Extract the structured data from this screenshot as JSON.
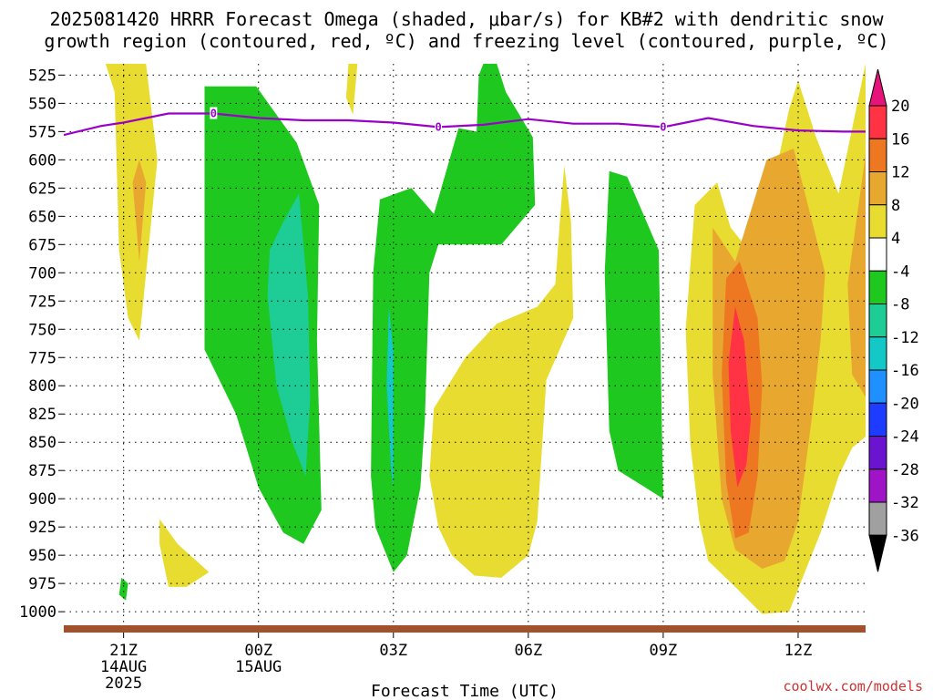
{
  "title_line1": "2025081420 HRRR Forecast Omega (shaded, μbar/s) for KB#2 with dendritic snow",
  "title_line2": "growth region (contoured, red, ºC) and freezing level (contoured, purple, ºC)",
  "credit": "coolwx.com/models",
  "credit_color": "#cc3333",
  "chart_data": {
    "type": "area",
    "xlabel": "Forecast Time (UTC)",
    "y_ticks": [
      525,
      550,
      575,
      600,
      625,
      650,
      675,
      700,
      725,
      750,
      775,
      800,
      825,
      850,
      875,
      900,
      925,
      950,
      975,
      1000
    ],
    "ylim": [
      1012,
      515
    ],
    "xlim": [
      -0.33,
      17.5
    ],
    "x_ticks": [
      {
        "x": 1,
        "label": "21Z",
        "sub1": "14AUG",
        "sub2": "2025"
      },
      {
        "x": 4,
        "label": "00Z",
        "sub1": "15AUG",
        "sub2": ""
      },
      {
        "x": 7,
        "label": "03Z",
        "sub1": "",
        "sub2": ""
      },
      {
        "x": 10,
        "label": "06Z",
        "sub1": "",
        "sub2": ""
      },
      {
        "x": 13,
        "label": "09Z",
        "sub1": "",
        "sub2": ""
      },
      {
        "x": 16,
        "label": "12Z",
        "sub1": "",
        "sub2": ""
      }
    ],
    "grid": true,
    "colorbar": {
      "labels": [
        "20",
        "16",
        "12",
        "8",
        "4",
        "-4",
        "-8",
        "-12",
        "-16",
        "-20",
        "-24",
        "-28",
        "-32",
        "-36"
      ],
      "colors": [
        "#ff3344",
        "#ee7722",
        "#e8a830",
        "#e8dc30",
        "#ffffff",
        "#1ec81e",
        "#1ecc96",
        "#14c8c8",
        "#1e90ff",
        "#1e3cff",
        "#6a14d2",
        "#a014c8",
        "#a0a0a0"
      ],
      "top_arrow_color": "#e6147a",
      "bottom_arrow_color": "#000000"
    },
    "freezing_level": {
      "color": "#9a00c8",
      "points": [
        [
          -0.33,
          578
        ],
        [
          0.5,
          570
        ],
        [
          1,
          567
        ],
        [
          1.5,
          563
        ],
        [
          2,
          559
        ],
        [
          3,
          559
        ],
        [
          4,
          563
        ],
        [
          5,
          565
        ],
        [
          6,
          565
        ],
        [
          7,
          567
        ],
        [
          8,
          571
        ],
        [
          9,
          569
        ],
        [
          10,
          564
        ],
        [
          11,
          568
        ],
        [
          12,
          568
        ],
        [
          13,
          571
        ],
        [
          13.5,
          567
        ],
        [
          14,
          563
        ],
        [
          15,
          570
        ],
        [
          16,
          574
        ],
        [
          17,
          575
        ],
        [
          17.5,
          575
        ]
      ],
      "labels": [
        [
          3.0,
          559,
          "0"
        ],
        [
          8.0,
          571,
          "0"
        ],
        [
          13.0,
          571,
          "0"
        ]
      ]
    },
    "ground_color": "#a0522d",
    "omega_regions": [
      {
        "value": 4,
        "color": "#e8dc30",
        "points": [
          [
            0.6,
            515
          ],
          [
            1.5,
            515
          ],
          [
            1.75,
            600
          ],
          [
            1.35,
            760
          ],
          [
            1.1,
            740
          ],
          [
            0.9,
            680
          ],
          [
            0.8,
            540
          ]
        ]
      },
      {
        "value": 4,
        "color": "#e8dc30",
        "points": [
          [
            6.0,
            515
          ],
          [
            6.2,
            515
          ],
          [
            6.1,
            560
          ],
          [
            5.95,
            545
          ]
        ]
      },
      {
        "value": 4,
        "color": "#e8dc30",
        "points": [
          [
            1.8,
            918
          ],
          [
            2.2,
            940
          ],
          [
            2.9,
            965
          ],
          [
            2.4,
            978
          ],
          [
            2.0,
            978
          ],
          [
            1.8,
            940
          ]
        ]
      },
      {
        "value": 4,
        "color": "#e8dc30",
        "points": [
          [
            7.9,
            820
          ],
          [
            8.6,
            775
          ],
          [
            9.3,
            745
          ],
          [
            10.2,
            730
          ],
          [
            10.6,
            710
          ],
          [
            10.7,
            655
          ],
          [
            10.8,
            605
          ],
          [
            10.95,
            655
          ],
          [
            11.0,
            740
          ],
          [
            10.4,
            795
          ],
          [
            10.2,
            920
          ],
          [
            10.0,
            950
          ],
          [
            9.4,
            970
          ],
          [
            8.8,
            968
          ],
          [
            8.3,
            950
          ],
          [
            8.0,
            925
          ],
          [
            7.8,
            880
          ]
        ]
      },
      {
        "value": 4,
        "color": "#e8dc30",
        "points": [
          [
            13.7,
            640
          ],
          [
            14.2,
            620
          ],
          [
            14.5,
            660
          ],
          [
            14.9,
            680
          ],
          [
            15.4,
            630
          ],
          [
            15.8,
            555
          ],
          [
            16.0,
            530
          ],
          [
            16.4,
            580
          ],
          [
            16.9,
            630
          ],
          [
            17.5,
            515
          ],
          [
            17.5,
            845
          ],
          [
            17.2,
            855
          ],
          [
            16.9,
            880
          ],
          [
            16.5,
            930
          ],
          [
            16.2,
            960
          ],
          [
            15.8,
            1000
          ],
          [
            15.2,
            1002
          ],
          [
            14.6,
            978
          ],
          [
            14.0,
            955
          ],
          [
            13.8,
            920
          ],
          [
            13.6,
            850
          ],
          [
            13.5,
            750
          ]
        ]
      },
      {
        "value": 8,
        "color": "#e8a830",
        "points": [
          [
            14.1,
            660
          ],
          [
            14.6,
            690
          ],
          [
            15.3,
            600
          ],
          [
            15.9,
            590
          ],
          [
            16.6,
            700
          ],
          [
            16.5,
            760
          ],
          [
            16.3,
            830
          ],
          [
            16.0,
            920
          ],
          [
            15.7,
            955
          ],
          [
            15.2,
            962
          ],
          [
            14.6,
            945
          ],
          [
            14.3,
            900
          ],
          [
            14.1,
            790
          ]
        ]
      },
      {
        "value": 8,
        "color": "#e8a830",
        "points": [
          [
            17.5,
            595
          ],
          [
            17.5,
            810
          ],
          [
            17.2,
            790
          ],
          [
            17.1,
            710
          ]
        ]
      },
      {
        "value": 8,
        "color": "#e8a830",
        "points": [
          [
            1.35,
            600
          ],
          [
            1.5,
            620
          ],
          [
            1.35,
            690
          ],
          [
            1.2,
            620
          ]
        ]
      },
      {
        "value": 12,
        "color": "#ee7722",
        "points": [
          [
            14.4,
            705
          ],
          [
            14.7,
            690
          ],
          [
            15.1,
            740
          ],
          [
            15.2,
            800
          ],
          [
            15.1,
            880
          ],
          [
            14.9,
            930
          ],
          [
            14.6,
            935
          ],
          [
            14.4,
            885
          ],
          [
            14.3,
            790
          ]
        ]
      },
      {
        "value": 16,
        "color": "#ff3344",
        "points": [
          [
            14.6,
            730
          ],
          [
            14.8,
            760
          ],
          [
            14.95,
            830
          ],
          [
            14.85,
            870
          ],
          [
            14.65,
            890
          ],
          [
            14.5,
            840
          ],
          [
            14.45,
            780
          ]
        ]
      },
      {
        "value": -4,
        "color": "#1ec81e",
        "points": [
          [
            2.8,
            535
          ],
          [
            3.95,
            535
          ],
          [
            4.85,
            585
          ],
          [
            5.35,
            640
          ],
          [
            5.3,
            760
          ],
          [
            5.4,
            910
          ],
          [
            5.0,
            940
          ],
          [
            4.55,
            930
          ],
          [
            4.0,
            890
          ],
          [
            3.5,
            825
          ],
          [
            2.8,
            768
          ]
        ]
      },
      {
        "value": -4,
        "color": "#1ec81e",
        "points": [
          [
            6.7,
            635
          ],
          [
            7.4,
            625
          ],
          [
            7.9,
            648
          ],
          [
            8.45,
            572
          ],
          [
            8.85,
            575
          ],
          [
            8.9,
            525
          ],
          [
            9.0,
            515
          ],
          [
            9.3,
            515
          ],
          [
            9.5,
            540
          ],
          [
            10.1,
            580
          ],
          [
            10.15,
            640
          ],
          [
            9.4,
            675
          ],
          [
            8.7,
            675
          ],
          [
            8.0,
            675
          ],
          [
            7.8,
            700
          ],
          [
            7.7,
            830
          ],
          [
            7.6,
            890
          ],
          [
            7.3,
            950
          ],
          [
            7.0,
            965
          ],
          [
            6.6,
            925
          ],
          [
            6.5,
            880
          ],
          [
            6.55,
            700
          ]
        ]
      },
      {
        "value": -4,
        "color": "#1ec81e",
        "points": [
          [
            11.8,
            610
          ],
          [
            12.2,
            615
          ],
          [
            12.9,
            680
          ],
          [
            13.0,
            900
          ],
          [
            12.6,
            890
          ],
          [
            12.0,
            875
          ],
          [
            11.8,
            840
          ],
          [
            11.7,
            700
          ]
        ]
      },
      {
        "value": -4,
        "color": "#1ec81e",
        "points": [
          [
            0.95,
            970
          ],
          [
            1.1,
            975
          ],
          [
            1.05,
            990
          ],
          [
            0.9,
            985
          ]
        ]
      },
      {
        "value": -8,
        "color": "#1ecc96",
        "points": [
          [
            4.25,
            680
          ],
          [
            4.55,
            655
          ],
          [
            4.9,
            630
          ],
          [
            5.1,
            720
          ],
          [
            5.15,
            810
          ],
          [
            5.05,
            880
          ],
          [
            4.75,
            850
          ],
          [
            4.4,
            800
          ],
          [
            4.2,
            720
          ]
        ]
      },
      {
        "value": -12,
        "color": "#14c8c8",
        "points": [
          [
            6.9,
            730
          ],
          [
            7.0,
            770
          ],
          [
            7.0,
            890
          ],
          [
            6.95,
            875
          ],
          [
            6.85,
            800
          ]
        ]
      }
    ]
  }
}
